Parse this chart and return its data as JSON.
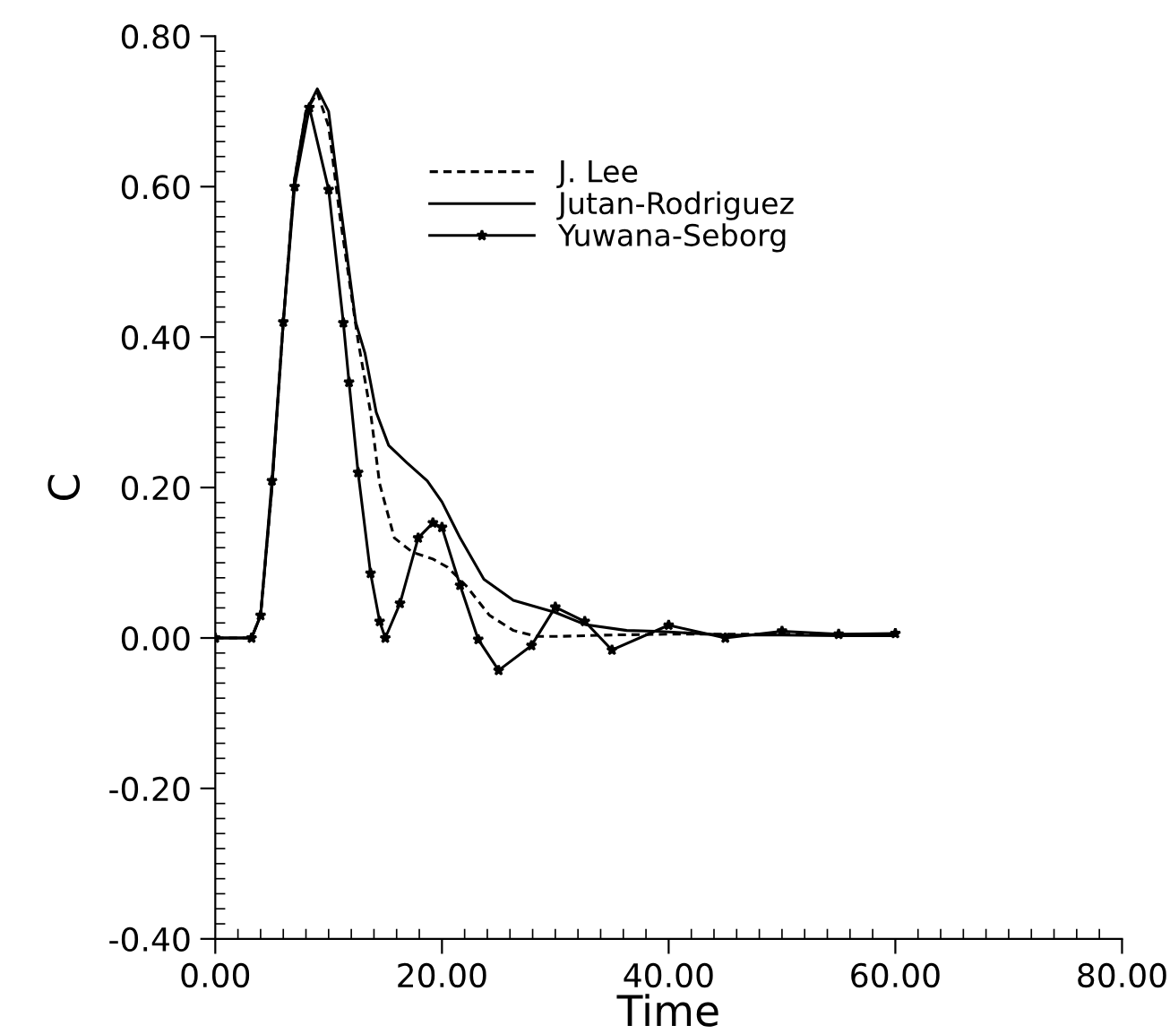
{
  "chart_data": {
    "type": "line",
    "xlabel": "Time",
    "ylabel": "C",
    "xlim": [
      0,
      80
    ],
    "ylim": [
      -0.4,
      0.8
    ],
    "xticks": [
      {
        "value": 0,
        "label": "0.00"
      },
      {
        "value": 20,
        "label": "20.00"
      },
      {
        "value": 40,
        "label": "40.00"
      },
      {
        "value": 60,
        "label": "60.00"
      },
      {
        "value": 80,
        "label": "80.00"
      }
    ],
    "yticks": [
      {
        "value": -0.4,
        "label": "-0.40"
      },
      {
        "value": -0.2,
        "label": "-0.20"
      },
      {
        "value": 0,
        "label": "0.00"
      },
      {
        "value": 0.2,
        "label": "0.20"
      },
      {
        "value": 0.4,
        "label": "0.40"
      },
      {
        "value": 0.6,
        "label": "0.60"
      },
      {
        "value": 0.8,
        "label": "0.80"
      }
    ],
    "grid": false,
    "legend": "top",
    "marker": "none",
    "series": [
      {
        "name": "J. Lee",
        "color": "#000000",
        "line_style": "dashed",
        "x": [
          0,
          3.2,
          4,
          5,
          6,
          7,
          8,
          9,
          10,
          11,
          12.6,
          13.7,
          14.5,
          15.8,
          17.4,
          19.2,
          20.5,
          22.1,
          24.2,
          26.3,
          28.4,
          30,
          35,
          40,
          50,
          60
        ],
        "values": [
          0,
          0,
          0.03,
          0.2,
          0.42,
          0.61,
          0.7,
          0.725,
          0.68,
          0.56,
          0.395,
          0.3,
          0.205,
          0.133,
          0.114,
          0.105,
          0.094,
          0.07,
          0.03,
          0.01,
          0.002,
          0.002,
          0.004,
          0.005,
          0.005,
          0.004
        ]
      },
      {
        "name": "Jutan-Rodriguez",
        "color": "#000000",
        "line_style": "solid",
        "x": [
          0,
          3.2,
          4,
          5,
          6,
          7,
          8,
          9,
          10,
          11,
          12.4,
          13.2,
          14.2,
          15.3,
          16.9,
          18.7,
          20,
          21.6,
          23.7,
          26.3,
          30,
          32.6,
          36.3,
          38.8,
          40,
          45,
          50,
          55,
          60
        ],
        "values": [
          0,
          0,
          0.03,
          0.2,
          0.42,
          0.61,
          0.7,
          0.73,
          0.7,
          0.58,
          0.419,
          0.379,
          0.3,
          0.256,
          0.233,
          0.209,
          0.181,
          0.133,
          0.078,
          0.05,
          0.034,
          0.018,
          0.01,
          0.009,
          0.008,
          0.004,
          0.004,
          0.003,
          0.003
        ]
      },
      {
        "name": "Yuwana-Seborg",
        "color": "#000000",
        "line_style": "solid",
        "marker": "star",
        "x": [
          0,
          3.2,
          4,
          5,
          6,
          7,
          8.3,
          10,
          11.3,
          11.8,
          12.6,
          13.7,
          14.5,
          15,
          16.3,
          17.9,
          19.2,
          20,
          21.6,
          23.2,
          25,
          27.9,
          30,
          32.6,
          35,
          40,
          45,
          50,
          55,
          60
        ],
        "values": [
          0,
          0,
          0.03,
          0.209,
          0.42,
          0.6,
          0.705,
          0.596,
          0.419,
          0.34,
          0.22,
          0.086,
          0.022,
          0,
          0.046,
          0.133,
          0.153,
          0.147,
          0.07,
          -0.002,
          -0.043,
          -0.01,
          0.041,
          0.022,
          -0.016,
          0.017,
          0,
          0.009,
          0.005,
          0.006
        ]
      }
    ]
  }
}
